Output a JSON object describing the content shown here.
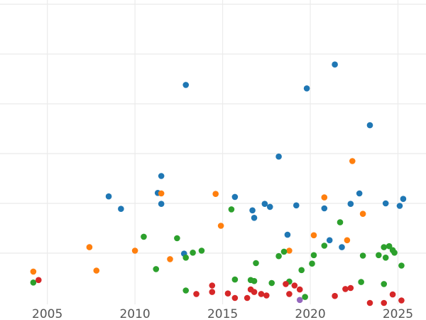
{
  "chart_data": {
    "type": "scatter",
    "title": "",
    "xlabel": "",
    "ylabel": "",
    "xlim": [
      2002.3,
      2026.6
    ],
    "ylim": [
      0,
      6
    ],
    "grid": true,
    "legend": "none",
    "x_ticks": [
      2005,
      2010,
      2015,
      2020,
      2025
    ],
    "x_tick_labels": [
      "2005",
      "2010",
      "2015",
      "2020",
      "2025"
    ],
    "y_gridlines": [
      1,
      2,
      3,
      4,
      5,
      6
    ],
    "series": [
      {
        "color": "#1f77b4",
        "points": [
          [
            2008.5,
            2.14
          ],
          [
            2009.2,
            1.89
          ],
          [
            2011.3,
            2.21
          ],
          [
            2011.5,
            2.55
          ],
          [
            2011.5,
            1.99
          ],
          [
            2012.9,
            4.38
          ],
          [
            2012.8,
            0.99
          ],
          [
            2015.7,
            2.13
          ],
          [
            2016.7,
            1.86
          ],
          [
            2016.8,
            1.71
          ],
          [
            2017.4,
            1.99
          ],
          [
            2017.7,
            1.93
          ],
          [
            2018.2,
            2.94
          ],
          [
            2018.7,
            1.37
          ],
          [
            2019.2,
            1.96
          ],
          [
            2019.8,
            4.31
          ],
          [
            2020.8,
            1.9
          ],
          [
            2021.1,
            1.26
          ],
          [
            2021.4,
            4.79
          ],
          [
            2021.8,
            1.12
          ],
          [
            2022.3,
            1.99
          ],
          [
            2022.8,
            2.2
          ],
          [
            2023.4,
            3.57
          ],
          [
            2024.3,
            2.0
          ],
          [
            2025.1,
            1.95
          ],
          [
            2025.3,
            2.09
          ]
        ]
      },
      {
        "color": "#ff7f0e",
        "points": [
          [
            2004.2,
            0.63
          ],
          [
            2007.4,
            1.12
          ],
          [
            2007.8,
            0.65
          ],
          [
            2010.0,
            1.05
          ],
          [
            2011.5,
            2.2
          ],
          [
            2012.0,
            0.88
          ],
          [
            2014.6,
            2.19
          ],
          [
            2014.9,
            1.55
          ],
          [
            2018.8,
            1.05
          ],
          [
            2020.2,
            1.36
          ],
          [
            2020.8,
            2.12
          ],
          [
            2022.1,
            1.26
          ],
          [
            2022.4,
            2.85
          ],
          [
            2023.0,
            1.79
          ]
        ]
      },
      {
        "color": "#2ca02c",
        "points": [
          [
            2004.2,
            0.41
          ],
          [
            2010.5,
            1.33
          ],
          [
            2011.2,
            0.68
          ],
          [
            2012.4,
            1.3
          ],
          [
            2012.9,
            0.91
          ],
          [
            2013.3,
            1.01
          ],
          [
            2012.9,
            0.25
          ],
          [
            2013.8,
            1.05
          ],
          [
            2015.5,
            1.88
          ],
          [
            2015.7,
            0.47
          ],
          [
            2016.6,
            0.46
          ],
          [
            2016.8,
            0.44
          ],
          [
            2016.9,
            0.8
          ],
          [
            2017.8,
            0.4
          ],
          [
            2018.2,
            0.94
          ],
          [
            2018.5,
            1.03
          ],
          [
            2018.8,
            0.43
          ],
          [
            2019.5,
            0.66
          ],
          [
            2019.7,
            0.12
          ],
          [
            2020.1,
            0.79
          ],
          [
            2020.2,
            0.96
          ],
          [
            2020.8,
            1.15
          ],
          [
            2021.7,
            1.62
          ],
          [
            2022.9,
            0.42
          ],
          [
            2023.0,
            0.95
          ],
          [
            2023.9,
            0.96
          ],
          [
            2024.2,
            1.12
          ],
          [
            2024.3,
            0.91
          ],
          [
            2024.5,
            1.14
          ],
          [
            2024.7,
            1.06
          ],
          [
            2024.8,
            1.01
          ],
          [
            2025.2,
            0.75
          ],
          [
            2024.2,
            0.38
          ]
        ]
      },
      {
        "color": "#d62728",
        "points": [
          [
            2004.5,
            0.46
          ],
          [
            2013.5,
            0.18
          ],
          [
            2014.4,
            0.35
          ],
          [
            2014.4,
            0.22
          ],
          [
            2015.3,
            0.19
          ],
          [
            2015.7,
            0.1
          ],
          [
            2016.4,
            0.1
          ],
          [
            2016.6,
            0.27
          ],
          [
            2016.8,
            0.22
          ],
          [
            2017.2,
            0.18
          ],
          [
            2017.5,
            0.15
          ],
          [
            2018.6,
            0.38
          ],
          [
            2018.8,
            0.18
          ],
          [
            2019.1,
            0.35
          ],
          [
            2019.4,
            0.27
          ],
          [
            2021.4,
            0.14
          ],
          [
            2022.0,
            0.28
          ],
          [
            2022.3,
            0.3
          ],
          [
            2023.4,
            0.0
          ],
          [
            2024.2,
            0.0
          ],
          [
            2024.7,
            0.17
          ],
          [
            2025.2,
            0.05
          ]
        ]
      },
      {
        "color": "#9467bd",
        "points": [
          [
            2019.4,
            0.06
          ]
        ]
      }
    ]
  }
}
